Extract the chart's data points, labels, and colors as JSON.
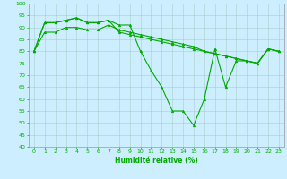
{
  "title": "",
  "xlabel": "Humidité relative (%)",
  "ylabel": "",
  "background_color": "#cceeff",
  "grid_color": "#aacccc",
  "line_color": "#00aa00",
  "marker": "^",
  "xlim": [
    -0.5,
    23.5
  ],
  "ylim": [
    40,
    100
  ],
  "yticks": [
    40,
    45,
    50,
    55,
    60,
    65,
    70,
    75,
    80,
    85,
    90,
    95,
    100
  ],
  "xticks": [
    0,
    1,
    2,
    3,
    4,
    5,
    6,
    7,
    8,
    9,
    10,
    11,
    12,
    13,
    14,
    15,
    16,
    17,
    18,
    19,
    20,
    21,
    22,
    23
  ],
  "series": [
    [
      80,
      92,
      92,
      93,
      94,
      92,
      92,
      93,
      91,
      91,
      80,
      72,
      65,
      55,
      55,
      49,
      60,
      81,
      65,
      76,
      76,
      75,
      81,
      80
    ],
    [
      80,
      92,
      92,
      93,
      94,
      92,
      92,
      93,
      88,
      87,
      86,
      85,
      84,
      83,
      82,
      81,
      80,
      79,
      78,
      77,
      76,
      75,
      81,
      80
    ],
    [
      80,
      88,
      88,
      90,
      90,
      89,
      89,
      91,
      89,
      88,
      87,
      86,
      85,
      84,
      83,
      82,
      80,
      79,
      78,
      77,
      76,
      75,
      81,
      80
    ]
  ],
  "xlabel_fontsize": 5.5,
  "tick_fontsize": 4.5,
  "linewidth": 0.8,
  "markersize": 2.0
}
